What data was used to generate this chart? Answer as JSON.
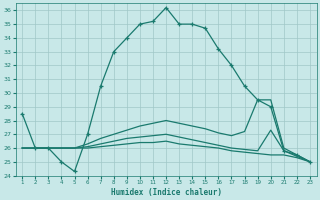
{
  "xlabel": "Humidex (Indice chaleur)",
  "bg_color": "#c8e8e8",
  "line_color": "#1a7a6e",
  "grid_color": "#a0c8c8",
  "xlim": [
    0.5,
    23.5
  ],
  "ylim": [
    24,
    36.5
  ],
  "yticks": [
    24,
    25,
    26,
    27,
    28,
    29,
    30,
    31,
    32,
    33,
    34,
    35,
    36
  ],
  "xticks": [
    1,
    2,
    3,
    4,
    5,
    6,
    7,
    8,
    9,
    10,
    11,
    12,
    13,
    14,
    15,
    16,
    17,
    18,
    19,
    20,
    21,
    22,
    23
  ],
  "lines": [
    {
      "x": [
        1,
        2,
        3,
        4,
        5,
        6,
        7,
        8,
        9,
        10,
        11,
        12,
        13,
        14,
        15,
        16,
        17,
        18,
        19,
        20,
        21,
        22,
        23
      ],
      "y": [
        28.5,
        26.0,
        26.0,
        25.0,
        24.3,
        27.0,
        30.5,
        33.0,
        34.0,
        35.0,
        35.2,
        36.2,
        35.0,
        35.0,
        34.7,
        33.2,
        32.0,
        30.5,
        29.5,
        29.0,
        25.8,
        25.5,
        25.0
      ],
      "marker": true
    },
    {
      "x": [
        1,
        2,
        3,
        4,
        5,
        6,
        7,
        8,
        9,
        10,
        11,
        12,
        13,
        14,
        15,
        16,
        17,
        18,
        19,
        20,
        21,
        22,
        23
      ],
      "y": [
        26.0,
        26.0,
        26.0,
        26.0,
        26.0,
        26.3,
        26.7,
        27.0,
        27.3,
        27.6,
        27.8,
        28.0,
        27.8,
        27.6,
        27.4,
        27.1,
        26.9,
        27.2,
        29.5,
        29.5,
        26.0,
        25.5,
        25.0
      ],
      "marker": false
    },
    {
      "x": [
        1,
        2,
        3,
        4,
        5,
        6,
        7,
        8,
        9,
        10,
        11,
        12,
        13,
        14,
        15,
        16,
        17,
        18,
        19,
        20,
        21,
        22,
        23
      ],
      "y": [
        26.0,
        26.0,
        26.0,
        26.0,
        26.0,
        26.1,
        26.3,
        26.5,
        26.7,
        26.8,
        26.9,
        27.0,
        26.8,
        26.6,
        26.4,
        26.2,
        26.0,
        25.9,
        25.8,
        27.3,
        25.8,
        25.4,
        25.0
      ],
      "marker": false
    },
    {
      "x": [
        1,
        2,
        3,
        4,
        5,
        6,
        7,
        8,
        9,
        10,
        11,
        12,
        13,
        14,
        15,
        16,
        17,
        18,
        19,
        20,
        21,
        22,
        23
      ],
      "y": [
        26.0,
        26.0,
        26.0,
        26.0,
        26.0,
        26.0,
        26.1,
        26.2,
        26.3,
        26.4,
        26.4,
        26.5,
        26.3,
        26.2,
        26.1,
        26.0,
        25.8,
        25.7,
        25.6,
        25.5,
        25.5,
        25.3,
        25.0
      ],
      "marker": false
    }
  ]
}
